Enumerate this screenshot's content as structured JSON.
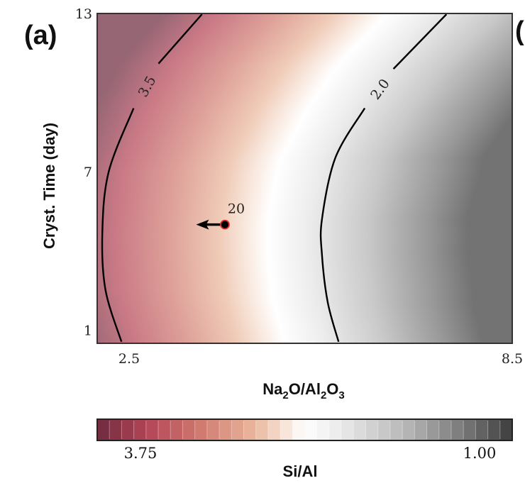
{
  "panel_label": "(a)",
  "next_panel_fragment": "(",
  "chart_data": {
    "type": "heatmap",
    "subtype": "filled contour map with contour lines",
    "xlabel": {
      "main1": "Na",
      "sub1": "2",
      "main2": "O/Al",
      "sub2": "2",
      "main3": "O",
      "sub3": "3"
    },
    "ylabel": "Cryst. Time (day)",
    "xlim": [
      2.0,
      8.5
    ],
    "ylim": [
      0.5,
      13
    ],
    "xticks": [
      {
        "value": 2.5,
        "label": "2.5"
      },
      {
        "value": 8.5,
        "label": "8.5"
      }
    ],
    "yticks": [
      {
        "value": 13,
        "label": "13"
      },
      {
        "value": 7,
        "label": "7"
      },
      {
        "value": 1,
        "label": "1"
      }
    ],
    "grid": false,
    "field": "Si/Al",
    "contours": [
      {
        "level": 3.5,
        "label": "3.5",
        "points": [
          [
            3.64,
            12.97
          ],
          [
            2.96,
            11.1
          ],
          [
            2.57,
            9.41
          ],
          [
            2.18,
            7.0
          ],
          [
            2.08,
            4.66
          ],
          [
            2.13,
            2.52
          ],
          [
            2.38,
            0.56
          ]
        ],
        "label_gap_after_index": 1
      },
      {
        "level": 2.0,
        "label": "2.0",
        "points": [
          [
            7.47,
            12.97
          ],
          [
            6.64,
            10.9
          ],
          [
            6.19,
            9.41
          ],
          [
            5.73,
            7.53
          ],
          [
            5.52,
            5.2
          ],
          [
            5.52,
            3.86
          ],
          [
            5.61,
            2.06
          ],
          [
            5.78,
            0.56
          ]
        ],
        "label_gap_after_index": 1
      }
    ],
    "marker": {
      "x": 4.0,
      "y": 5.0,
      "label": "20",
      "arrow_to": [
        3.55,
        5.0
      ],
      "fill": "#000000",
      "edge": "#e0312a"
    },
    "colorbar": {
      "label": "Si/Al",
      "orientation": "horizontal",
      "range": [
        3.75,
        1.0
      ],
      "tick_labels": [
        "3.75",
        "1.00"
      ],
      "segments": 34,
      "colormap": [
        {
          "pos": 0.0,
          "color": "#6e2a3f"
        },
        {
          "pos": 0.12,
          "color": "#b44556"
        },
        {
          "pos": 0.25,
          "color": "#d07a70"
        },
        {
          "pos": 0.38,
          "color": "#eab79c"
        },
        {
          "pos": 0.45,
          "color": "#f7e3d6"
        },
        {
          "pos": 0.5,
          "color": "#ffffff"
        },
        {
          "pos": 0.6,
          "color": "#e6e6e6"
        },
        {
          "pos": 0.75,
          "color": "#b4b4b4"
        },
        {
          "pos": 0.9,
          "color": "#707070"
        },
        {
          "pos": 1.0,
          "color": "#3c3c3c"
        }
      ]
    }
  }
}
